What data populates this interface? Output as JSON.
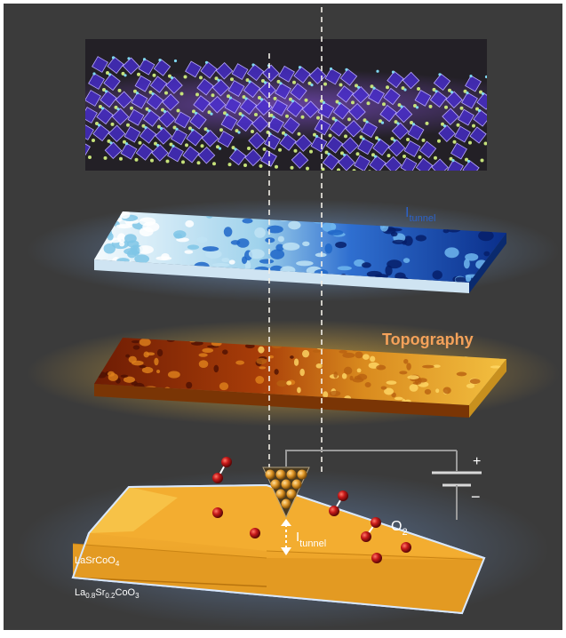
{
  "labels": {
    "tunnel_layer": {
      "main": "I",
      "sub": "tunnel"
    },
    "topography": "Topography",
    "tip_current": {
      "main": "I",
      "sub": "tunnel"
    },
    "oxygen": {
      "main": "O",
      "sub": "2"
    },
    "battery_plus": "+",
    "battery_minus": "−",
    "layer_top": {
      "a": "LaSrCoO",
      "a_sub": "4"
    },
    "layer_bottom": {
      "a": "La",
      "a_sub": "0.8",
      "b": "Sr",
      "b_sub": "0.2",
      "c": "CoO",
      "c_sub": "3"
    }
  },
  "colors": {
    "background": "#3b3b3b",
    "crystal_panel": "#232026",
    "octahedra": "#6a3df0",
    "tunnel_map_light": "#eef6fb",
    "tunnel_map_dark": "#0b2f8a",
    "topography_dark": "#7a1f04",
    "topography_bright": "#f0b83a",
    "substrate": "#f2a626",
    "oxygen": "#c01818",
    "label_gold": "#f5a25a"
  }
}
